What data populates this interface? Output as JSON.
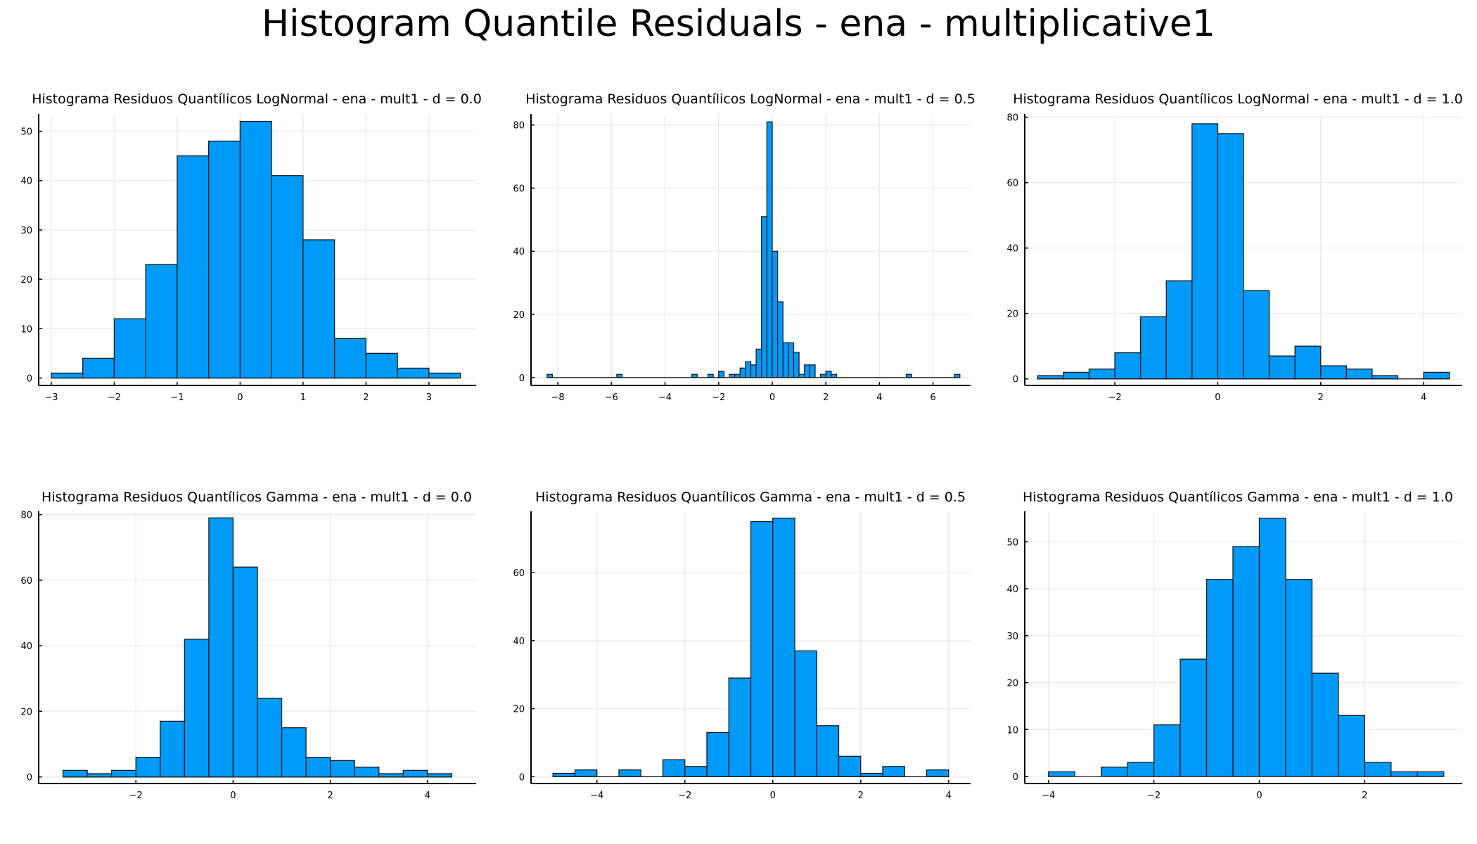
{
  "title": "Histogram Quantile Residuals - ena - multiplicative1",
  "colors": {
    "bar_fill": "#009af9",
    "bar_stroke": "#1a1a1a",
    "axis": "#000000",
    "grid": "#ebebeb"
  },
  "chart_data": [
    {
      "type": "bar",
      "title": "Histograma Residuos Quantílicos LogNormal - ena - mult1 - d = 0.0",
      "xlim": [
        -3.2,
        3.75
      ],
      "ylim": [
        -1.5,
        53.5
      ],
      "xticks": [
        -3,
        -2,
        -1,
        0,
        1,
        2,
        3
      ],
      "yticks": [
        0,
        10,
        20,
        30,
        40,
        50
      ],
      "bin_edges": [
        -3,
        -2.5,
        -2,
        -1.5,
        -1,
        -0.5,
        0,
        0.5,
        1,
        1.5,
        2,
        2.5,
        3,
        3.5
      ],
      "counts": [
        1,
        4,
        12,
        23,
        45,
        48,
        52,
        41,
        28,
        8,
        5,
        2,
        1
      ],
      "grid": true
    },
    {
      "type": "bar",
      "title": "Histograma Residuos Quantílicos LogNormal - ena - mult1 - d = 0.5",
      "xlim": [
        -9.0,
        7.4
      ],
      "ylim": [
        -2.5,
        83.5
      ],
      "xticks": [
        -8,
        -6,
        -4,
        -2,
        0,
        2,
        4,
        6
      ],
      "yticks": [
        0,
        20,
        40,
        60,
        80
      ],
      "bin_edges": [
        -8.4,
        -8.2,
        -5.8,
        -5.6,
        -3.0,
        -2.8,
        -2.4,
        -2.2,
        -2.0,
        -1.8,
        -1.6,
        -1.4,
        -1.2,
        -1.0,
        -0.8,
        -0.6,
        -0.4,
        -0.2,
        0.0,
        0.2,
        0.4,
        0.6,
        0.8,
        1.0,
        1.2,
        1.4,
        1.6,
        1.8,
        2.0,
        2.2,
        2.4,
        5.0,
        5.2,
        6.8,
        7.0
      ],
      "counts": [
        1,
        0,
        1,
        0,
        1,
        0,
        1,
        0,
        2,
        0,
        1,
        1,
        3,
        5,
        4,
        9,
        51,
        81,
        40,
        24,
        11,
        11,
        8,
        1,
        4,
        4,
        0,
        1,
        2,
        1,
        0,
        1,
        0,
        1
      ],
      "grid": true
    },
    {
      "type": "bar",
      "title": "Histograma Residuos Quantílicos LogNormal - ena - mult1 - d = 1.0",
      "xlim": [
        -3.75,
        4.75
      ],
      "ylim": [
        -2,
        81
      ],
      "xticks": [
        -2,
        0,
        2,
        4
      ],
      "yticks": [
        0,
        20,
        40,
        60,
        80
      ],
      "bin_edges": [
        -3.5,
        -3.0,
        -2.5,
        -2.0,
        -1.5,
        -1.0,
        -0.5,
        0.0,
        0.5,
        1.0,
        1.5,
        2.0,
        2.5,
        3.0,
        3.5,
        4.0,
        4.5
      ],
      "counts": [
        1,
        2,
        3,
        8,
        19,
        30,
        78,
        75,
        27,
        7,
        10,
        4,
        3,
        1,
        0,
        2
      ],
      "grid": true
    },
    {
      "type": "bar",
      "title": "Histograma Residuos Quantílicos Gamma - ena - mult1 - d = 0.0",
      "xlim": [
        -4.0,
        5.0
      ],
      "ylim": [
        -2,
        81
      ],
      "xticks": [
        -2,
        0,
        2,
        4
      ],
      "yticks": [
        0,
        20,
        40,
        60,
        80
      ],
      "bin_edges": [
        -3.5,
        -3.0,
        -2.5,
        -2.0,
        -1.5,
        -1.0,
        -0.5,
        0.0,
        0.5,
        1.0,
        1.5,
        2.0,
        2.5,
        3.0,
        3.5,
        4.0,
        4.5
      ],
      "counts": [
        2,
        1,
        2,
        6,
        17,
        42,
        79,
        64,
        24,
        15,
        6,
        5,
        3,
        1,
        2,
        1
      ],
      "grid": true
    },
    {
      "type": "bar",
      "title": "Histograma Residuos Quantílicos Gamma - ena - mult1 - d = 0.5",
      "xlim": [
        -5.5,
        4.5
      ],
      "ylim": [
        -2,
        78
      ],
      "xticks": [
        -4,
        -2,
        0,
        2,
        4
      ],
      "yticks": [
        0,
        20,
        40,
        60
      ],
      "bin_edges": [
        -5.0,
        -4.5,
        -4.0,
        -3.5,
        -3.0,
        -2.5,
        -2.0,
        -1.5,
        -1.0,
        -0.5,
        0.0,
        0.5,
        1.0,
        1.5,
        2.0,
        2.5,
        3.0,
        3.5,
        4.0
      ],
      "counts": [
        1,
        2,
        0,
        2,
        0,
        5,
        3,
        13,
        29,
        75,
        76,
        37,
        15,
        6,
        1,
        3,
        0,
        2
      ],
      "grid": true
    },
    {
      "type": "bar",
      "title": "Histograma Residuos Quantílicos Gamma - ena - mult1 - d = 1.0",
      "xlim": [
        -4.45,
        3.85
      ],
      "ylim": [
        -1.5,
        56.5
      ],
      "xticks": [
        -4,
        -2,
        0,
        2
      ],
      "yticks": [
        0,
        10,
        20,
        30,
        40,
        50
      ],
      "bin_edges": [
        -4.0,
        -3.5,
        -3.0,
        -2.5,
        -2.0,
        -1.5,
        -1.0,
        -0.5,
        0.0,
        0.5,
        1.0,
        1.5,
        2.0,
        2.5,
        3.0,
        3.5
      ],
      "counts": [
        1,
        0,
        2,
        3,
        11,
        25,
        42,
        49,
        55,
        42,
        22,
        13,
        3,
        1,
        1
      ],
      "grid": true
    }
  ]
}
